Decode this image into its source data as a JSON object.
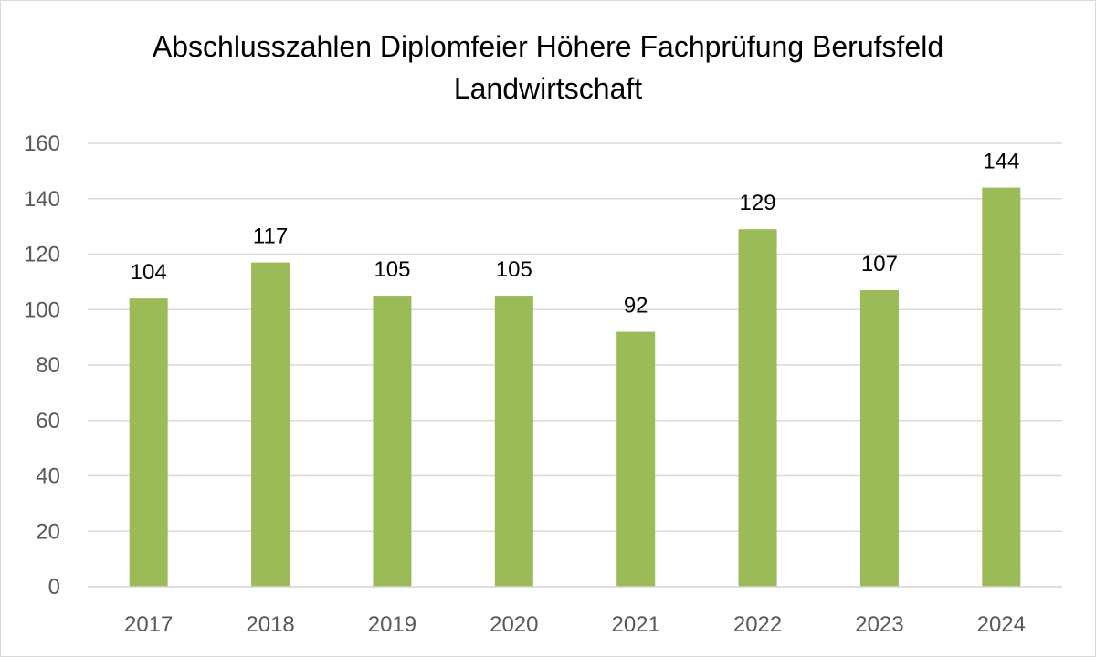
{
  "chart_data": {
    "type": "bar",
    "title_lines": [
      "Abschlusszahlen Diplomfeier Höhere Fachprüfung Berufsfeld",
      "Landwirtschaft"
    ],
    "categories": [
      "2017",
      "2018",
      "2019",
      "2020",
      "2021",
      "2022",
      "2023",
      "2024"
    ],
    "values": [
      104,
      117,
      105,
      105,
      92,
      129,
      107,
      144
    ],
    "xlabel": "",
    "ylabel": "",
    "ylim": [
      0,
      160
    ],
    "yticks": [
      0,
      20,
      40,
      60,
      80,
      100,
      120,
      140,
      160
    ],
    "grid": true,
    "legend": "none",
    "data_labels": true,
    "colors": {
      "bar": "#9bbb59",
      "grid": "#d9d9d9",
      "axis_text": "#595959"
    }
  }
}
